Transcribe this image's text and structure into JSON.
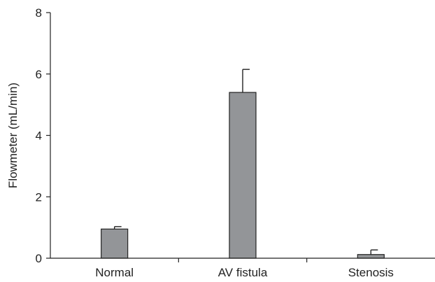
{
  "chart_data": {
    "type": "bar",
    "title": "",
    "xlabel": "",
    "ylabel": "Flowmeter (mL/min)",
    "categories": [
      "Normal",
      "AV fistula",
      "Stenosis"
    ],
    "values": [
      0.95,
      5.4,
      0.12
    ],
    "error_upper": [
      0.08,
      0.75,
      0.15
    ],
    "ylim": [
      0,
      8
    ],
    "yticks": [
      0,
      2,
      4,
      6,
      8
    ],
    "grid": false,
    "legend": "none",
    "bar_color": "#939598"
  }
}
